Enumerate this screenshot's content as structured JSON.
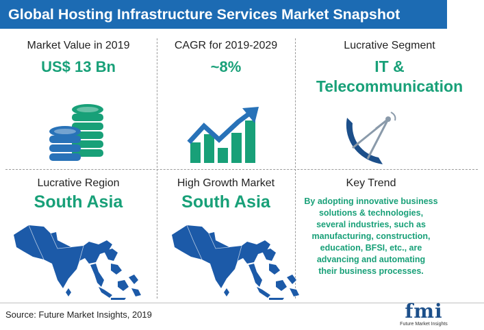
{
  "title": "Global Hosting Infrastructure Services Market Snapshot",
  "cells": {
    "market_value": {
      "label": "Market Value in 2019",
      "value": "US$ 13 Bn",
      "icon": "database-stack-icon"
    },
    "cagr": {
      "label": "CAGR for 2019-2029",
      "value": "~8%",
      "icon": "growth-chart-icon"
    },
    "segment": {
      "label": "Lucrative Segment",
      "value_line1": "IT &",
      "value_line2": "Telecommunication",
      "icon": "satellite-dish-icon"
    },
    "region": {
      "label": "Lucrative Region",
      "value": "South Asia",
      "icon": "south-asia-map-icon"
    },
    "growth_market": {
      "label": "High Growth Market",
      "value": "South Asia",
      "icon": "south-asia-map-icon"
    },
    "key_trend": {
      "label": "Key Trend",
      "lines": [
        "By adopting innovative business",
        "solutions & technologies,",
        "several industries, such as",
        "manufacturing, construction,",
        "education, BFSI, etc., are",
        "advancing and automating",
        "their business processes."
      ]
    }
  },
  "source": "Source: Future Market Insights, 2019",
  "logo": {
    "text": "fmi",
    "subtitle": "Future Market Insights"
  },
  "colors": {
    "title_bg": "#1c6bb3",
    "accent_green": "#18a078",
    "icon_blue": "#2872b8",
    "map_blue": "#1c5aa8"
  }
}
